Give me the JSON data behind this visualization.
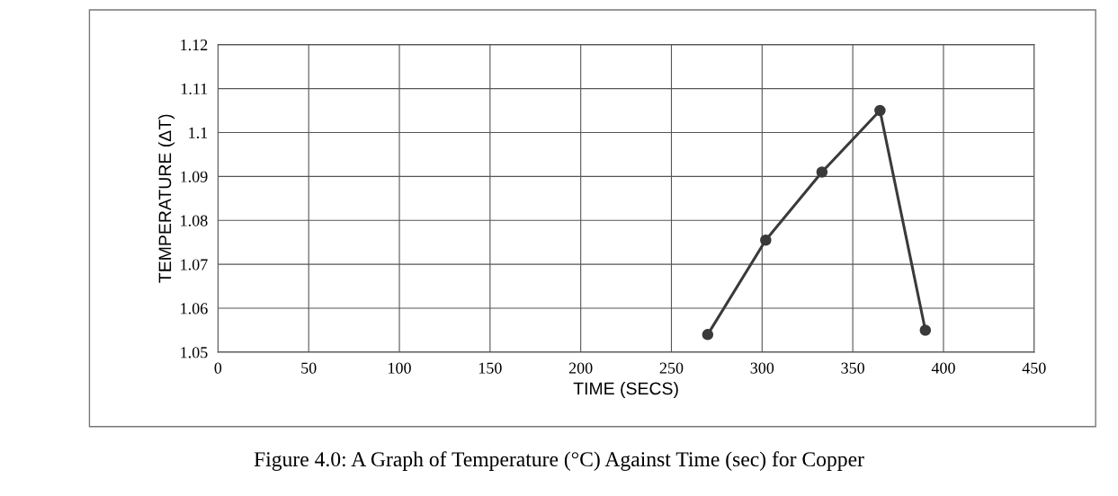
{
  "chart_data": {
    "type": "line",
    "xlabel": "TIME (SECS)",
    "ylabel": "TEMPERATURE (ΔT)",
    "x": [
      270,
      302,
      333,
      365,
      390
    ],
    "series": [
      {
        "color": "#3a3a3a",
        "values": [
          1.054,
          1.0755,
          1.091,
          1.105,
          1.055
        ]
      }
    ],
    "xlim": [
      0,
      450
    ],
    "xticks": [
      0,
      50,
      100,
      150,
      200,
      250,
      300,
      350,
      400,
      450
    ],
    "ylim": [
      1.05,
      1.12
    ],
    "yticks": [
      1.05,
      1.06,
      1.07,
      1.08,
      1.09,
      1.1,
      1.11,
      1.12
    ],
    "grid": true,
    "marker": "circle",
    "line_style": "solid",
    "annotations": [
      "Figure 4.0: A Graph of Temperature (°C) Against Time (sec) for Copper"
    ]
  }
}
